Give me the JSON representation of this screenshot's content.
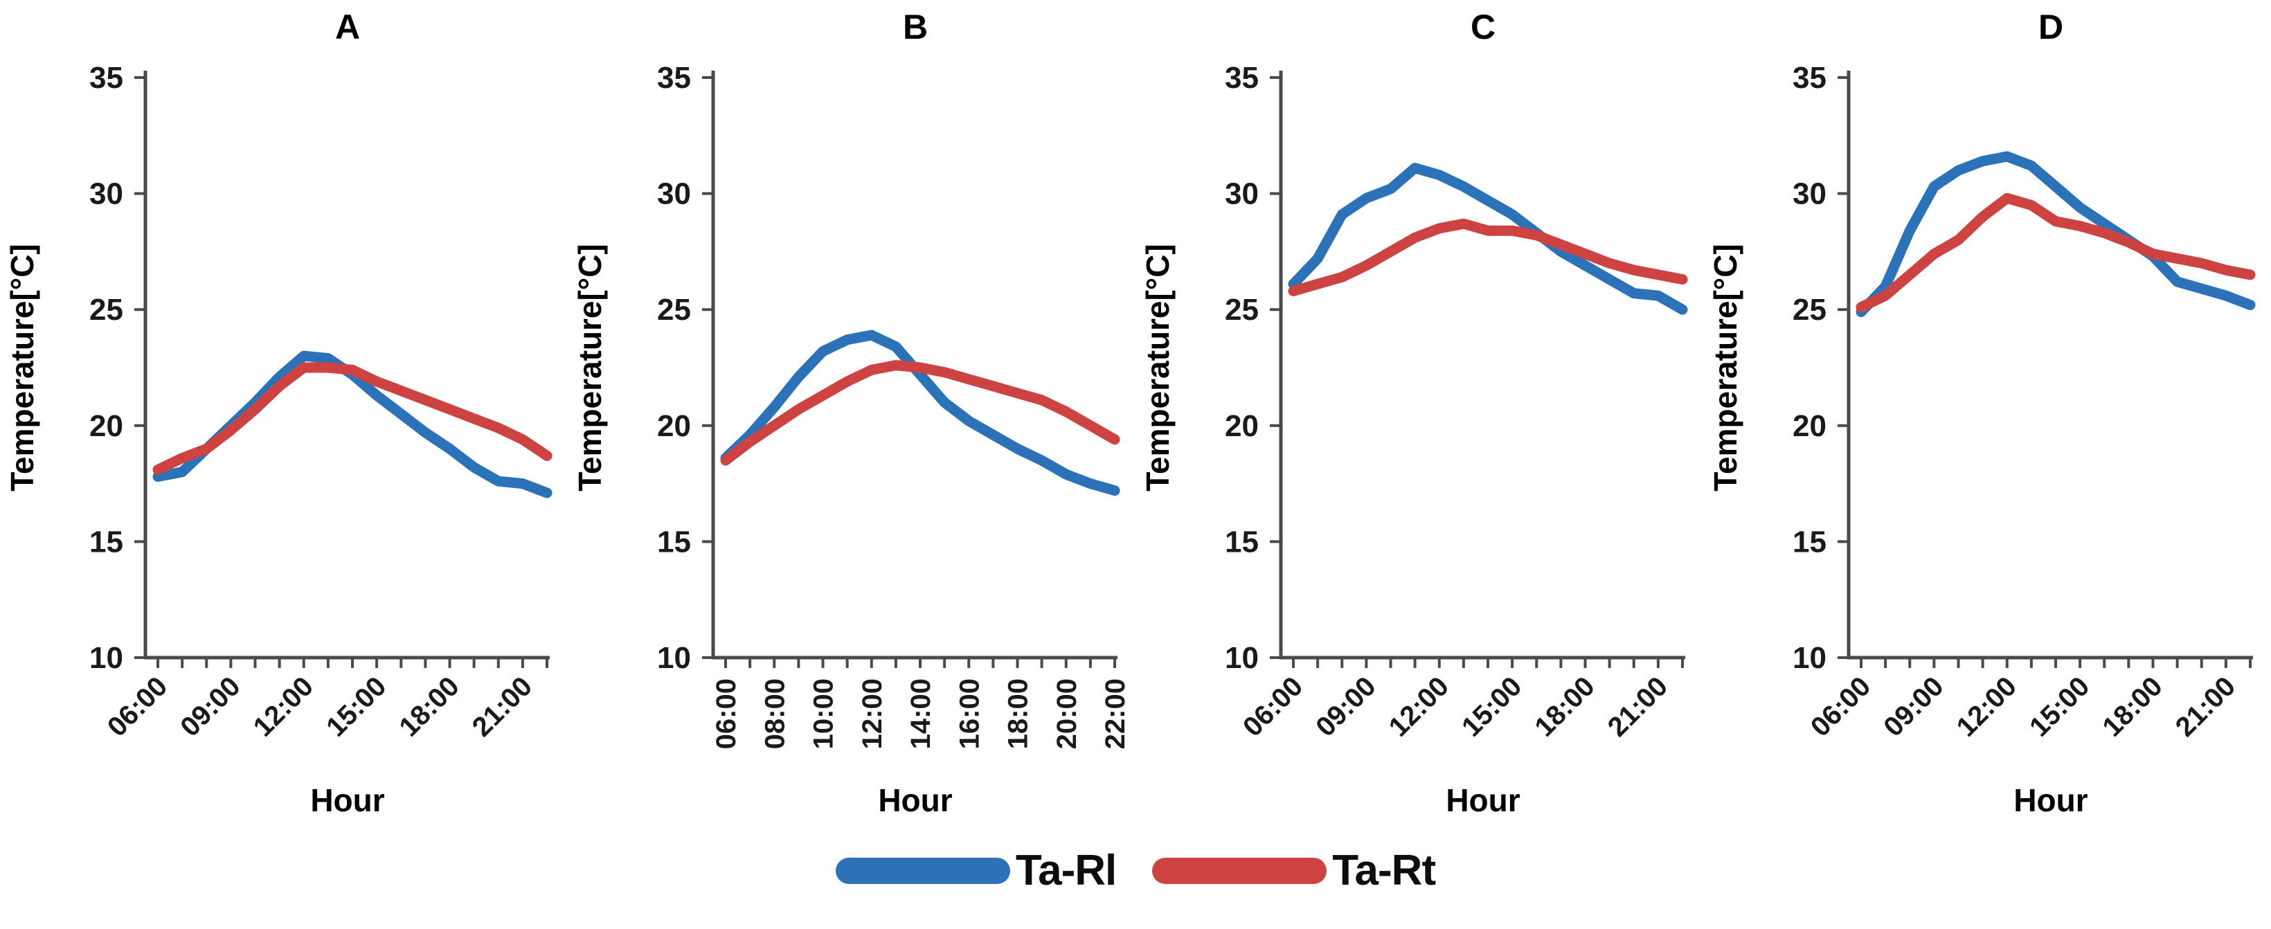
{
  "figure": {
    "background": "#ffffff",
    "axis_color": "#4a4a4a",
    "text_color": "#1a1a1a",
    "xlabel": "Hour",
    "ylabel": "Temperature[°C]"
  },
  "legend": {
    "items": [
      {
        "label": "Ta-Rl",
        "color": "#2b72b8"
      },
      {
        "label": "Ta-Rt",
        "color": "#cc4341"
      }
    ]
  },
  "chart_data": [
    {
      "type": "line",
      "title": "A",
      "xlabel": "Hour",
      "ylabel": "Temperature[°C]",
      "ylim": [
        10,
        35
      ],
      "yticks": [
        10,
        15,
        20,
        25,
        30,
        35
      ],
      "grid": false,
      "legend_position": "bottom-center-shared",
      "x": [
        "06:00",
        "07:00",
        "08:00",
        "09:00",
        "10:00",
        "11:00",
        "12:00",
        "13:00",
        "14:00",
        "15:00",
        "16:00",
        "17:00",
        "18:00",
        "19:00",
        "20:00",
        "21:00",
        "22:00"
      ],
      "x_major_tick_indices": [
        0,
        3,
        6,
        9,
        12,
        15
      ],
      "x_major_tick_labels": [
        "06:00",
        "09:00",
        "12:00",
        "15:00",
        "18:00",
        "21:00"
      ],
      "x_label_style": "diagonal",
      "series": [
        {
          "name": "Ta-Rl",
          "color": "#2b72b8",
          "values": [
            17.8,
            18.0,
            19.0,
            20.0,
            21.0,
            22.1,
            23.0,
            22.9,
            22.2,
            21.3,
            20.5,
            19.7,
            19.0,
            18.2,
            17.6,
            17.5,
            17.1
          ]
        },
        {
          "name": "Ta-Rt",
          "color": "#cc4341",
          "values": [
            18.1,
            18.6,
            19.0,
            19.8,
            20.7,
            21.7,
            22.5,
            22.5,
            22.4,
            21.9,
            21.5,
            21.1,
            20.7,
            20.3,
            19.9,
            19.4,
            18.7
          ]
        }
      ]
    },
    {
      "type": "line",
      "title": "B",
      "xlabel": "Hour",
      "ylabel": "Temperature[°C]",
      "ylim": [
        10,
        35
      ],
      "yticks": [
        10,
        15,
        20,
        25,
        30,
        35
      ],
      "grid": false,
      "legend_position": "bottom-center-shared",
      "x": [
        "06:00",
        "07:00",
        "08:00",
        "09:00",
        "10:00",
        "11:00",
        "12:00",
        "13:00",
        "14:00",
        "15:00",
        "16:00",
        "17:00",
        "18:00",
        "19:00",
        "20:00",
        "21:00",
        "22:00"
      ],
      "x_major_tick_indices": [
        0,
        2,
        4,
        6,
        8,
        10,
        12,
        14,
        16
      ],
      "x_major_tick_labels": [
        "06:00",
        "08:00",
        "10:00",
        "12:00",
        "14:00",
        "16:00",
        "18:00",
        "20:00",
        "22:00"
      ],
      "x_label_style": "vertical",
      "series": [
        {
          "name": "Ta-Rl",
          "color": "#2b72b8",
          "values": [
            18.6,
            19.6,
            20.8,
            22.1,
            23.2,
            23.7,
            23.9,
            23.4,
            22.2,
            21.0,
            20.2,
            19.6,
            19.0,
            18.5,
            17.9,
            17.5,
            17.2
          ]
        },
        {
          "name": "Ta-Rt",
          "color": "#cc4341",
          "values": [
            18.5,
            19.3,
            20.0,
            20.7,
            21.3,
            21.9,
            22.4,
            22.6,
            22.5,
            22.3,
            22.0,
            21.7,
            21.4,
            21.1,
            20.6,
            20.0,
            19.4
          ]
        }
      ]
    },
    {
      "type": "line",
      "title": "C",
      "xlabel": "Hour",
      "ylabel": "Temperature[°C]",
      "ylim": [
        10,
        35
      ],
      "yticks": [
        10,
        15,
        20,
        25,
        30,
        35
      ],
      "grid": false,
      "legend_position": "bottom-center-shared",
      "x": [
        "06:00",
        "07:00",
        "08:00",
        "09:00",
        "10:00",
        "11:00",
        "12:00",
        "13:00",
        "14:00",
        "15:00",
        "16:00",
        "17:00",
        "18:00",
        "19:00",
        "20:00",
        "21:00",
        "22:00"
      ],
      "x_major_tick_indices": [
        0,
        3,
        6,
        9,
        12,
        15
      ],
      "x_major_tick_labels": [
        "06:00",
        "09:00",
        "12:00",
        "15:00",
        "18:00",
        "21:00"
      ],
      "x_label_style": "diagonal",
      "series": [
        {
          "name": "Ta-Rl",
          "color": "#2b72b8",
          "values": [
            26.1,
            27.2,
            29.1,
            29.8,
            30.2,
            31.1,
            30.8,
            30.3,
            29.7,
            29.1,
            28.3,
            27.5,
            26.9,
            26.3,
            25.7,
            25.6,
            25.0
          ]
        },
        {
          "name": "Ta-Rt",
          "color": "#cc4341",
          "values": [
            25.8,
            26.1,
            26.4,
            26.9,
            27.5,
            28.1,
            28.5,
            28.7,
            28.4,
            28.4,
            28.2,
            27.8,
            27.4,
            27.0,
            26.7,
            26.5,
            26.3
          ]
        }
      ]
    },
    {
      "type": "line",
      "title": "D",
      "xlabel": "Hour",
      "ylabel": "Temperature[°C]",
      "ylim": [
        10,
        35
      ],
      "yticks": [
        10,
        15,
        20,
        25,
        30,
        35
      ],
      "grid": false,
      "legend_position": "bottom-center-shared",
      "x": [
        "06:00",
        "07:00",
        "08:00",
        "09:00",
        "10:00",
        "11:00",
        "12:00",
        "13:00",
        "14:00",
        "15:00",
        "16:00",
        "17:00",
        "18:00",
        "19:00",
        "20:00",
        "21:00",
        "22:00"
      ],
      "x_major_tick_indices": [
        0,
        3,
        6,
        9,
        12,
        15
      ],
      "x_major_tick_labels": [
        "06:00",
        "09:00",
        "12:00",
        "15:00",
        "18:00",
        "21:00"
      ],
      "x_label_style": "diagonal",
      "series": [
        {
          "name": "Ta-Rl",
          "color": "#2b72b8",
          "values": [
            24.9,
            26.0,
            28.4,
            30.3,
            31.0,
            31.4,
            31.6,
            31.2,
            30.3,
            29.4,
            28.7,
            28.0,
            27.3,
            26.2,
            25.9,
            25.6,
            25.2
          ]
        },
        {
          "name": "Ta-Rt",
          "color": "#cc4341",
          "values": [
            25.1,
            25.6,
            26.5,
            27.4,
            28.0,
            29.0,
            29.8,
            29.5,
            28.8,
            28.6,
            28.3,
            27.9,
            27.4,
            27.2,
            27.0,
            26.7,
            26.5
          ]
        }
      ]
    }
  ]
}
